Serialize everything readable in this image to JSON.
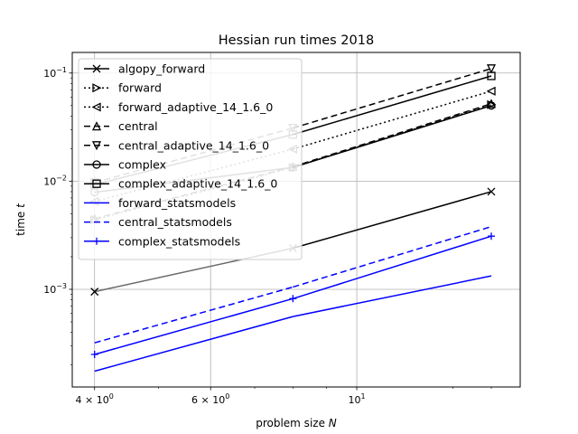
{
  "chart_data": {
    "type": "line",
    "title": "Hessian run times 2018",
    "xlabel": "problem size N",
    "ylabel": "time t",
    "xscale": "log",
    "yscale": "log",
    "xlim": [
      3.7,
      17.7
    ],
    "ylim": [
      0.000125,
      0.155
    ],
    "x": [
      4,
      8,
      16
    ],
    "x_ticks": [
      {
        "value": 4,
        "base": "4",
        "exp": "0"
      },
      {
        "value": 6,
        "base": "6",
        "exp": "0"
      },
      {
        "value": 10,
        "base": "10",
        "exp": "1"
      }
    ],
    "y_ticks": [
      {
        "value": 0.001,
        "base": "10",
        "exp": "−3"
      },
      {
        "value": 0.01,
        "base": "10",
        "exp": "−2"
      },
      {
        "value": 0.1,
        "base": "10",
        "exp": "−1"
      }
    ],
    "grid": true,
    "legend_position": "upper-left",
    "series": [
      {
        "name": "algopy_forward",
        "values": [
          0.00095,
          0.0024,
          0.008
        ],
        "colors": [
          "#000000",
          "#6a6a6a",
          "#000000"
        ],
        "dash": "",
        "marker": "x"
      },
      {
        "name": "forward",
        "values": [
          0.0044,
          0.0134,
          0.051
        ],
        "colors": [
          "#6a6a6a",
          "#6a6a6a",
          "#000000"
        ],
        "dash": "2,3",
        "marker": "tri-right"
      },
      {
        "name": "forward_adaptive_14_1.6_0",
        "values": [
          0.0065,
          0.0198,
          0.068
        ],
        "colors": [
          "#6a6a6a",
          "#6a6a6a",
          "#000000"
        ],
        "dash": "2,3",
        "marker": "tri-left"
      },
      {
        "name": "central",
        "values": [
          0.0045,
          0.0136,
          0.052
        ],
        "colors": [
          "#6a6a6a",
          "#6a6a6a",
          "#000000"
        ],
        "dash": "7,4",
        "marker": "tri-up"
      },
      {
        "name": "central_adaptive_14_1.6_0",
        "values": [
          0.0097,
          0.031,
          0.11
        ],
        "colors": [
          "#6a6a6a",
          "#6a6a6a",
          "#000000"
        ],
        "dash": "7,4",
        "marker": "tri-down"
      },
      {
        "name": "complex",
        "values": [
          0.0079,
          0.0134,
          0.05
        ],
        "colors": [
          "#6a6a6a",
          "#6a6a6a",
          "#000000"
        ],
        "dash": "",
        "marker": "circle"
      },
      {
        "name": "complex_adaptive_14_1.6_0",
        "values": [
          0.0093,
          0.027,
          0.094
        ],
        "colors": [
          "#6a6a6a",
          "#6a6a6a",
          "#000000"
        ],
        "dash": "",
        "marker": "square"
      },
      {
        "name": "forward_statsmodels",
        "values": [
          0.000175,
          0.00056,
          0.00133
        ],
        "colors": [
          "#0000ff",
          "#0000ff",
          "#0000ff"
        ],
        "dash": "",
        "marker": "none"
      },
      {
        "name": "central_statsmodels",
        "values": [
          0.00032,
          0.00105,
          0.0038
        ],
        "colors": [
          "#0000ff",
          "#0000ff",
          "#0000ff"
        ],
        "dash": "7,4",
        "marker": "none"
      },
      {
        "name": "complex_statsmodels",
        "values": [
          0.00025,
          0.00082,
          0.0031
        ],
        "colors": [
          "#0000ff",
          "#0000ff",
          "#0000ff"
        ],
        "dash": "",
        "marker": "plus"
      }
    ]
  }
}
